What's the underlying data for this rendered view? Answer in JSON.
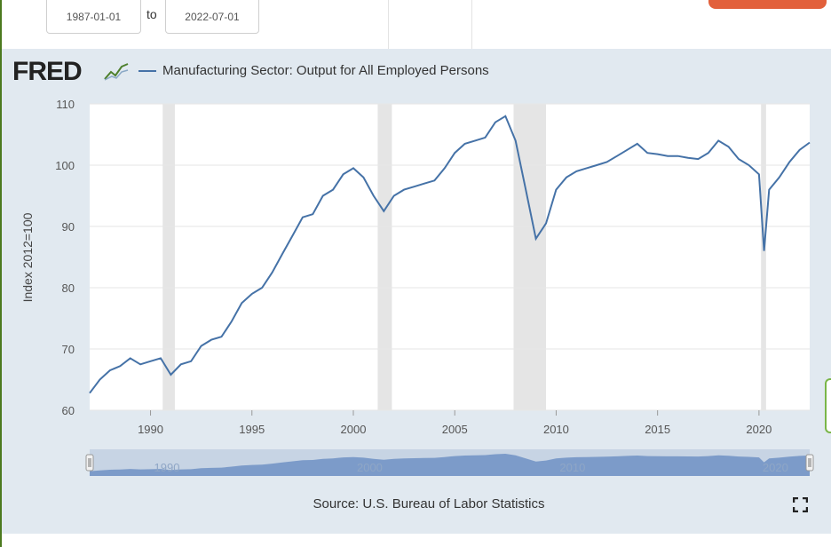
{
  "date_range": {
    "start": "1987-01-01",
    "separator": "to",
    "end": "2022-07-01"
  },
  "logo": {
    "text": "FRED",
    "icon": "fred-graph-icon"
  },
  "source": "Source: U.S. Bureau of Labor Statistics",
  "colors": {
    "series": "#4572a7",
    "recession": "#e5e5e5",
    "panel": "#e1e9f0",
    "accent": "#e2603b"
  },
  "chart_data": {
    "type": "line",
    "title": "",
    "xlabel": "",
    "ylabel": "Index 2012=100",
    "ylim": [
      60,
      110
    ],
    "xlim": [
      1987.0,
      2022.5
    ],
    "y_ticks": [
      60,
      70,
      80,
      90,
      100,
      110
    ],
    "x_ticks": [
      1990,
      1995,
      2000,
      2005,
      2010,
      2015,
      2020
    ],
    "grid": true,
    "legend": "top-left",
    "recessions": [
      [
        1990.6,
        1991.2
      ],
      [
        2001.2,
        2001.9
      ],
      [
        2007.9,
        2009.5
      ],
      [
        2020.1,
        2020.35
      ]
    ],
    "series": [
      {
        "name": "Manufacturing Sector: Output for All Employed Persons",
        "x": [
          1987.0,
          1987.5,
          1988.0,
          1988.5,
          1989.0,
          1989.5,
          1990.0,
          1990.5,
          1991.0,
          1991.5,
          1992.0,
          1992.5,
          1993.0,
          1993.5,
          1994.0,
          1994.5,
          1995.0,
          1995.5,
          1996.0,
          1996.5,
          1997.0,
          1997.5,
          1998.0,
          1998.5,
          1999.0,
          1999.5,
          2000.0,
          2000.5,
          2001.0,
          2001.5,
          2002.0,
          2002.5,
          2003.0,
          2003.5,
          2004.0,
          2004.5,
          2005.0,
          2005.5,
          2006.0,
          2006.5,
          2007.0,
          2007.5,
          2008.0,
          2008.5,
          2009.0,
          2009.5,
          2010.0,
          2010.5,
          2011.0,
          2011.5,
          2012.0,
          2012.5,
          2013.0,
          2013.5,
          2014.0,
          2014.5,
          2015.0,
          2015.5,
          2016.0,
          2016.5,
          2017.0,
          2017.5,
          2018.0,
          2018.5,
          2019.0,
          2019.5,
          2020.0,
          2020.25,
          2020.5,
          2021.0,
          2021.5,
          2022.0,
          2022.5
        ],
        "values": [
          62.8,
          65.0,
          66.5,
          67.2,
          68.5,
          67.5,
          68.0,
          68.5,
          65.8,
          67.5,
          68.0,
          70.5,
          71.5,
          72.0,
          74.5,
          77.5,
          79.0,
          80.0,
          82.5,
          85.5,
          88.5,
          91.5,
          92.0,
          95.0,
          96.0,
          98.5,
          99.5,
          98.0,
          95.0,
          92.5,
          95.0,
          96.0,
          96.5,
          97.0,
          97.5,
          99.5,
          102.0,
          103.5,
          104.0,
          104.5,
          107.0,
          108.0,
          104.0,
          96.0,
          88.0,
          90.5,
          96.0,
          98.0,
          99.0,
          99.5,
          100.0,
          100.5,
          101.5,
          102.5,
          103.5,
          102.0,
          101.8,
          101.5,
          101.5,
          101.2,
          101.0,
          102.0,
          104.0,
          103.0,
          101.0,
          100.0,
          98.5,
          86.0,
          96.0,
          98.0,
          100.5,
          102.5,
          103.7
        ]
      }
    ],
    "navigator": {
      "tick_labels": [
        "1990",
        "2000",
        "2010",
        "2020"
      ]
    }
  }
}
